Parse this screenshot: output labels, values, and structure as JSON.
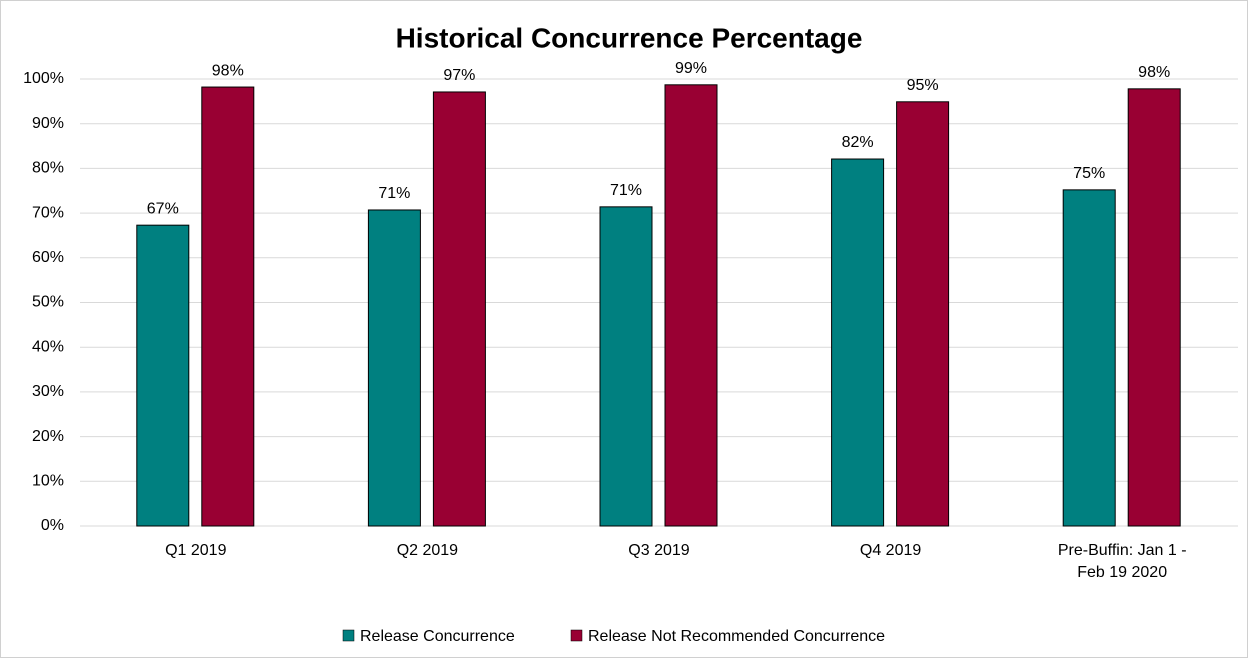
{
  "chart_data": {
    "type": "bar",
    "title": "Historical Concurrence Percentage",
    "categories": [
      "Q1 2019",
      "Q2 2019",
      "Q3 2019",
      "Q4 2019",
      "Pre-Buffin: Jan 1 - Feb 19 2020"
    ],
    "series": [
      {
        "name": "Release Concurrence",
        "color": "#008080",
        "values": [
          67.3,
          70.7,
          71.4,
          82.1,
          75.2
        ],
        "value_labels": [
          "67%",
          "71%",
          "71%",
          "82%",
          "75%"
        ]
      },
      {
        "name": "Release Not Recommended Concurrence",
        "color": "#990033",
        "values": [
          98.2,
          97.1,
          98.7,
          94.9,
          97.8
        ],
        "value_labels": [
          "98%",
          "97%",
          "99%",
          "95%",
          "98%"
        ]
      }
    ],
    "ylim": [
      0,
      100
    ],
    "yticks": [
      {
        "value": 0,
        "label": "0%"
      },
      {
        "value": 10,
        "label": "10%"
      },
      {
        "value": 20,
        "label": "20%"
      },
      {
        "value": 30,
        "label": "30%"
      },
      {
        "value": 40,
        "label": "40%"
      },
      {
        "value": 50,
        "label": "50%"
      },
      {
        "value": 60,
        "label": "60%"
      },
      {
        "value": 70,
        "label": "70%"
      },
      {
        "value": 80,
        "label": "80%"
      },
      {
        "value": 90,
        "label": "90%"
      },
      {
        "value": 100,
        "label": "100%"
      }
    ],
    "grid": true,
    "legend": "bottom"
  }
}
